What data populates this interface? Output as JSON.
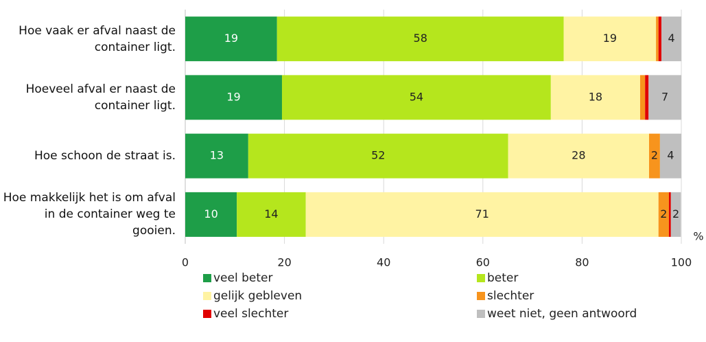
{
  "chart_data": {
    "type": "stacked-bar-horizontal",
    "categories": [
      "Hoe vaak er afval naast de container ligt.",
      "Hoeveel afval er naast de container ligt.",
      "Hoe schoon de straat is.",
      "Hoe makkelijk het is om afval in de container weg te gooien."
    ],
    "series": [
      {
        "name": "veel beter",
        "color": "#1e9e48",
        "values": [
          18.5,
          19.5,
          12.7,
          10.4
        ],
        "value_labels": [
          "19",
          "19",
          "13",
          "10"
        ]
      },
      {
        "name": "beter",
        "color": "#b5e61d",
        "values": [
          57.8,
          54.2,
          52.4,
          13.9
        ],
        "value_labels": [
          "58",
          "54",
          "52",
          "14"
        ]
      },
      {
        "name": "gelijk gebleven",
        "color": "#fff3a3",
        "values": [
          18.6,
          18.0,
          28.4,
          71.1
        ],
        "value_labels": [
          "19",
          "18",
          "28",
          "71"
        ]
      },
      {
        "name": "slechter",
        "color": "#f7941d",
        "values": [
          0.5,
          1.0,
          2.2,
          2.1
        ],
        "value_labels": [
          null,
          null,
          "2",
          "2"
        ]
      },
      {
        "name": "veel slechter",
        "color": "#e00000",
        "values": [
          0.6,
          0.7,
          0,
          0.4
        ],
        "value_labels": [
          null,
          null,
          null,
          null
        ]
      },
      {
        "name": "weet niet, geen antwoord",
        "color": "#bfbfbf",
        "values": [
          4.0,
          6.6,
          4.3,
          2.0
        ],
        "value_labels": [
          "4",
          "7",
          "4",
          "2"
        ]
      }
    ],
    "xlabel": "%",
    "xlim": [
      0,
      100
    ],
    "xticks": [
      0,
      20,
      40,
      60,
      80,
      100
    ],
    "grid": true,
    "legend": "bottom"
  }
}
